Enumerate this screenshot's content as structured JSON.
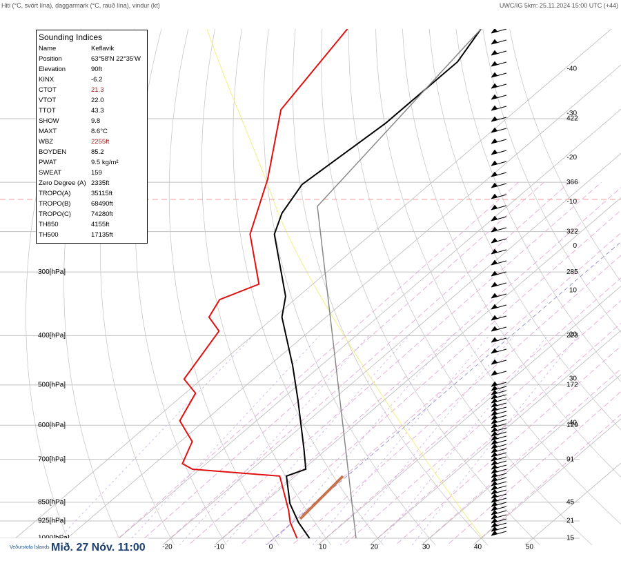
{
  "header": {
    "left": "Hiti (°C, svört lína), daggarmark (°C, rauð lína), vindur (kt)",
    "right": "UWC/IG 5km: 25.11.2024 15:00 UTC (+44)"
  },
  "footer": {
    "logo": "Veðurstofa Íslands",
    "time": "Mið. 27 Nóv. 11:00"
  },
  "indices": {
    "title": "Sounding Indices",
    "rows": [
      {
        "name": "Name",
        "value": "Keflavik"
      },
      {
        "name": "Position",
        "value": "63°58'N 22°35'W"
      },
      {
        "name": "Elevation",
        "value": "90ft"
      },
      {
        "name": "KINX",
        "value": "-6.2"
      },
      {
        "name": "CTOT",
        "value": "21.3",
        "color": "#a02020"
      },
      {
        "name": "VTOT",
        "value": "22.0"
      },
      {
        "name": "TTOT",
        "value": "43.3"
      },
      {
        "name": "SHOW",
        "value": "9.8"
      },
      {
        "name": "MAXT",
        "value": "8.6°C"
      },
      {
        "name": "WBZ",
        "value": "2255ft",
        "color": "#a02020"
      },
      {
        "name": "BOYDEN",
        "value": "85.2"
      },
      {
        "name": "PWAT",
        "value": "9.5 kg/m²"
      },
      {
        "name": "SWEAT",
        "value": "159"
      },
      {
        "name": "Zero Degree (A)",
        "value": "2335ft"
      },
      {
        "name": "TROPO(A)",
        "value": "35115ft"
      },
      {
        "name": "TROPO(B)",
        "value": "68490ft"
      },
      {
        "name": "TROPO(C)",
        "value": "74280ft"
      },
      {
        "name": "TH850",
        "value": "4155ft"
      },
      {
        "name": "TH500",
        "value": "17135ft"
      }
    ]
  },
  "chart_data": {
    "type": "skewt",
    "xlim": [
      -53,
      67
    ],
    "ylim": [
      1000,
      100
    ],
    "log_y": true,
    "xticks": [
      -50,
      -40,
      -30,
      -20,
      -10,
      0,
      10,
      20,
      30,
      40,
      50
    ],
    "bottom_labels": [
      null,
      null,
      null,
      "-20",
      "-10",
      "0",
      "10",
      "20",
      "30",
      "40",
      "50"
    ],
    "right_labels": [
      null,
      "-40",
      "-30",
      "-20",
      "-10",
      "0",
      "10",
      "20",
      "30",
      "40",
      null
    ],
    "yticks": [
      150,
      200,
      250,
      {
        "value": 300,
        "label": "300[hPa]"
      },
      {
        "value": 400,
        "label": "400[hPa]"
      },
      {
        "value": 500,
        "label": "500[hPa]"
      },
      {
        "value": 600,
        "label": "600[hPa]"
      },
      {
        "value": 700,
        "label": "700[hPa]"
      },
      {
        "value": 850,
        "label": "850[hPa]"
      },
      {
        "value": 925,
        "label": "925[hPa]"
      },
      {
        "value": 1000,
        "label": "1000[hPa]"
      }
    ],
    "height_labels": [
      "422",
      "366",
      "322",
      "285",
      "223",
      "172",
      "129",
      "91",
      "45",
      "21",
      "15"
    ],
    "tropopause": 216,
    "series": [
      {
        "color": "#000000",
        "pressure": [
          1000,
          931,
          855,
          816,
          755,
          732,
          666,
          535,
          458,
          368,
          335,
          253,
          230,
          202,
          153,
          116,
          100
        ],
        "values": [
          6.8,
          1.1,
          -4.8,
          -7.4,
          -11.7,
          -9.5,
          -14.6,
          -26.7,
          -35.5,
          -48.5,
          -52.5,
          -68.7,
          -72,
          -74.6,
          -72.3,
          -72.3,
          -75.2
        ]
      },
      {
        "color": "#e01010",
        "pressure": [
          1000,
          931,
          882,
          755,
          732,
          714,
          646,
          588,
          519,
          487,
          392,
          368,
          340,
          317,
          253,
          197,
          144,
          100
        ],
        "values": [
          4.4,
          -0.5,
          -3.5,
          -13,
          -31.4,
          -34.6,
          -37.7,
          -44.8,
          -48,
          -53.4,
          -57.5,
          -62.6,
          -64.5,
          -60.4,
          -73.4,
          -82.5,
          -95.6,
          -101
        ]
      },
      {
        "color": "#888888",
        "pressure": [
          1000,
          223,
          100
        ],
        "values": [
          15.8,
          -66.7,
          -75.2
        ]
      }
    ]
  }
}
